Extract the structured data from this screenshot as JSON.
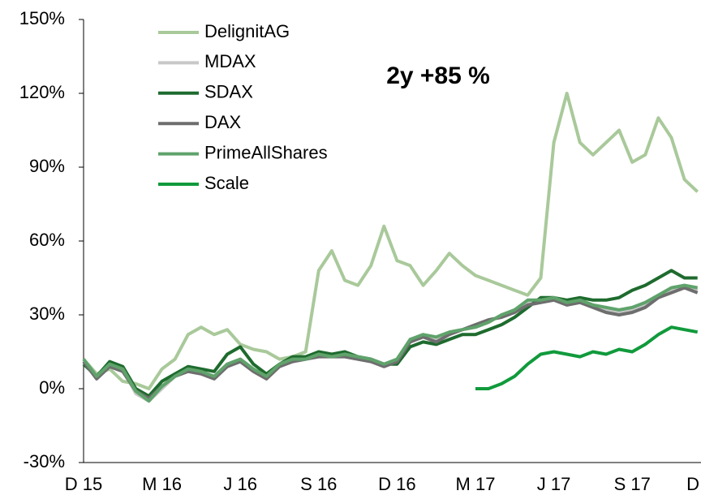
{
  "chart_data": {
    "type": "line",
    "annotation": "2y +85 %",
    "categories": [
      "D 15",
      null,
      null,
      null,
      null,
      null,
      "M 16",
      null,
      null,
      null,
      null,
      null,
      "J 16",
      null,
      null,
      null,
      null,
      null,
      "S 16",
      null,
      null,
      null,
      null,
      null,
      "D 16",
      null,
      null,
      null,
      null,
      null,
      "M 17",
      null,
      null,
      null,
      null,
      null,
      "J 17",
      null,
      null,
      null,
      null,
      null,
      "S 17",
      null,
      null,
      null,
      null,
      null,
      "D"
    ],
    "series": [
      {
        "name": "DelignitAG",
        "color": "#a9c99a",
        "values": [
          12,
          6,
          8,
          3,
          2,
          0,
          8,
          12,
          22,
          25,
          22,
          24,
          18,
          16,
          15,
          12,
          13,
          15,
          48,
          56,
          44,
          42,
          50,
          66,
          52,
          50,
          42,
          48,
          55,
          50,
          46,
          44,
          42,
          40,
          38,
          45,
          100,
          120,
          100,
          95,
          100,
          105,
          92,
          95,
          110,
          102,
          85,
          80,
          null
        ]
      },
      {
        "name": "MDAX",
        "color": "#c8c8c8",
        "values": [
          12,
          5,
          10,
          8,
          -2,
          -5,
          0,
          5,
          8,
          7,
          5,
          10,
          12,
          8,
          5,
          10,
          12,
          12,
          14,
          13,
          14,
          13,
          12,
          10,
          12,
          20,
          22,
          20,
          23,
          24,
          25,
          27,
          30,
          32,
          35,
          35,
          36,
          35,
          36,
          34,
          32,
          31,
          32,
          34,
          38,
          40,
          42,
          40,
          null
        ]
      },
      {
        "name": "SDAX",
        "color": "#1e6b2e",
        "values": [
          10,
          5,
          11,
          9,
          0,
          -3,
          3,
          6,
          9,
          8,
          7,
          14,
          17,
          10,
          6,
          10,
          13,
          13,
          15,
          14,
          15,
          13,
          12,
          10,
          10,
          17,
          19,
          18,
          20,
          22,
          22,
          24,
          26,
          29,
          33,
          37,
          37,
          36,
          37,
          36,
          36,
          37,
          40,
          42,
          45,
          48,
          45,
          45,
          null
        ]
      },
      {
        "name": "DAX",
        "color": "#6e6e6e",
        "values": [
          11,
          4,
          9,
          7,
          -1,
          -4,
          1,
          5,
          7,
          6,
          4,
          9,
          11,
          7,
          4,
          9,
          11,
          12,
          13,
          13,
          13,
          12,
          11,
          9,
          11,
          19,
          21,
          19,
          22,
          24,
          26,
          28,
          29,
          31,
          34,
          35,
          36,
          34,
          35,
          33,
          31,
          30,
          31,
          33,
          37,
          39,
          41,
          39,
          null
        ]
      },
      {
        "name": "PrimeAllShares",
        "color": "#5fa36b",
        "values": [
          12,
          5,
          10,
          8,
          -1,
          -5,
          1,
          5,
          8,
          7,
          5,
          10,
          12,
          8,
          5,
          10,
          12,
          12,
          14,
          13,
          14,
          13,
          12,
          10,
          12,
          20,
          22,
          21,
          23,
          24,
          25,
          27,
          30,
          32,
          36,
          36,
          37,
          35,
          36,
          34,
          33,
          32,
          33,
          35,
          38,
          41,
          42,
          41,
          null
        ]
      },
      {
        "name": "Scale",
        "color": "#119a3c",
        "values": [
          null,
          null,
          null,
          null,
          null,
          null,
          null,
          null,
          null,
          null,
          null,
          null,
          null,
          null,
          null,
          null,
          null,
          null,
          null,
          null,
          null,
          null,
          null,
          null,
          null,
          null,
          null,
          null,
          null,
          null,
          0,
          0,
          2,
          5,
          10,
          14,
          15,
          14,
          13,
          15,
          14,
          16,
          15,
          18,
          22,
          25,
          24,
          23,
          null
        ]
      }
    ],
    "ylim": [
      -30,
      150
    ],
    "yticks": [
      {
        "value": -30,
        "label": "-30%"
      },
      {
        "value": 0,
        "label": "0%"
      },
      {
        "value": 30,
        "label": "30%"
      },
      {
        "value": 60,
        "label": "60%"
      },
      {
        "value": 90,
        "label": "90%"
      },
      {
        "value": 120,
        "label": "120%"
      },
      {
        "value": 150,
        "label": "150%"
      }
    ],
    "legend": "top-left"
  }
}
